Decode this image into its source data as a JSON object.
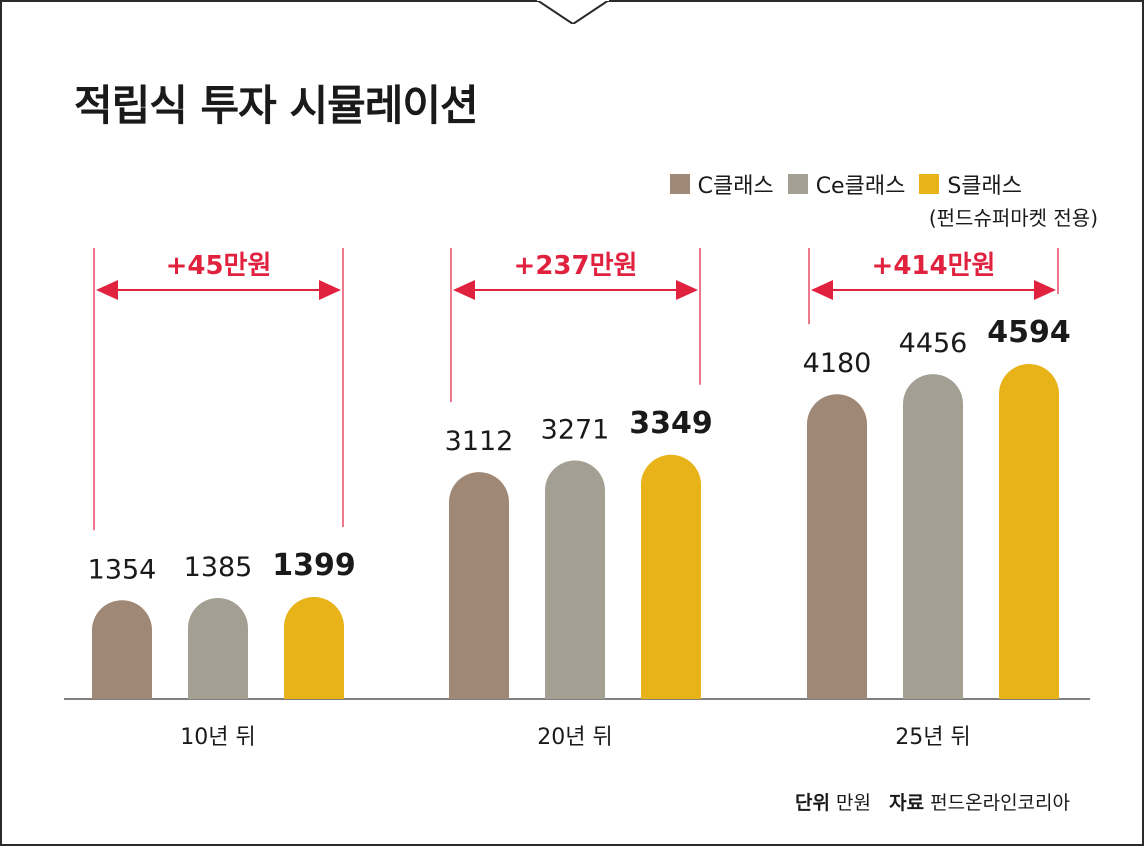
{
  "title": "적립식 투자 시뮬레이션",
  "legend_note": "(펀드슈퍼마켓 전용)",
  "footer": {
    "unit_label": "단위",
    "unit_value": "만원",
    "source_label": "자료",
    "source_value": "펀드온라인코리아"
  },
  "colors": {
    "accent": "#e0223f",
    "axis": "#555555"
  },
  "chart_data": {
    "type": "bar",
    "categories": [
      "10년 뒤",
      "20년 뒤",
      "25년 뒤"
    ],
    "series": [
      {
        "name": "C클래스",
        "color": "#a08876",
        "values": [
          1354,
          3112,
          4180
        ]
      },
      {
        "name": "Ce클래스",
        "color": "#a39f93",
        "values": [
          1385,
          3271,
          4456
        ]
      },
      {
        "name": "S클래스",
        "color": "#e8b318",
        "values": [
          1399,
          3349,
          4594
        ]
      }
    ],
    "annotations": [
      "+45만원",
      "+237만원",
      "+414만원"
    ],
    "legend_position": "top-right",
    "grid": false,
    "ylim": [
      0,
      4594
    ]
  }
}
